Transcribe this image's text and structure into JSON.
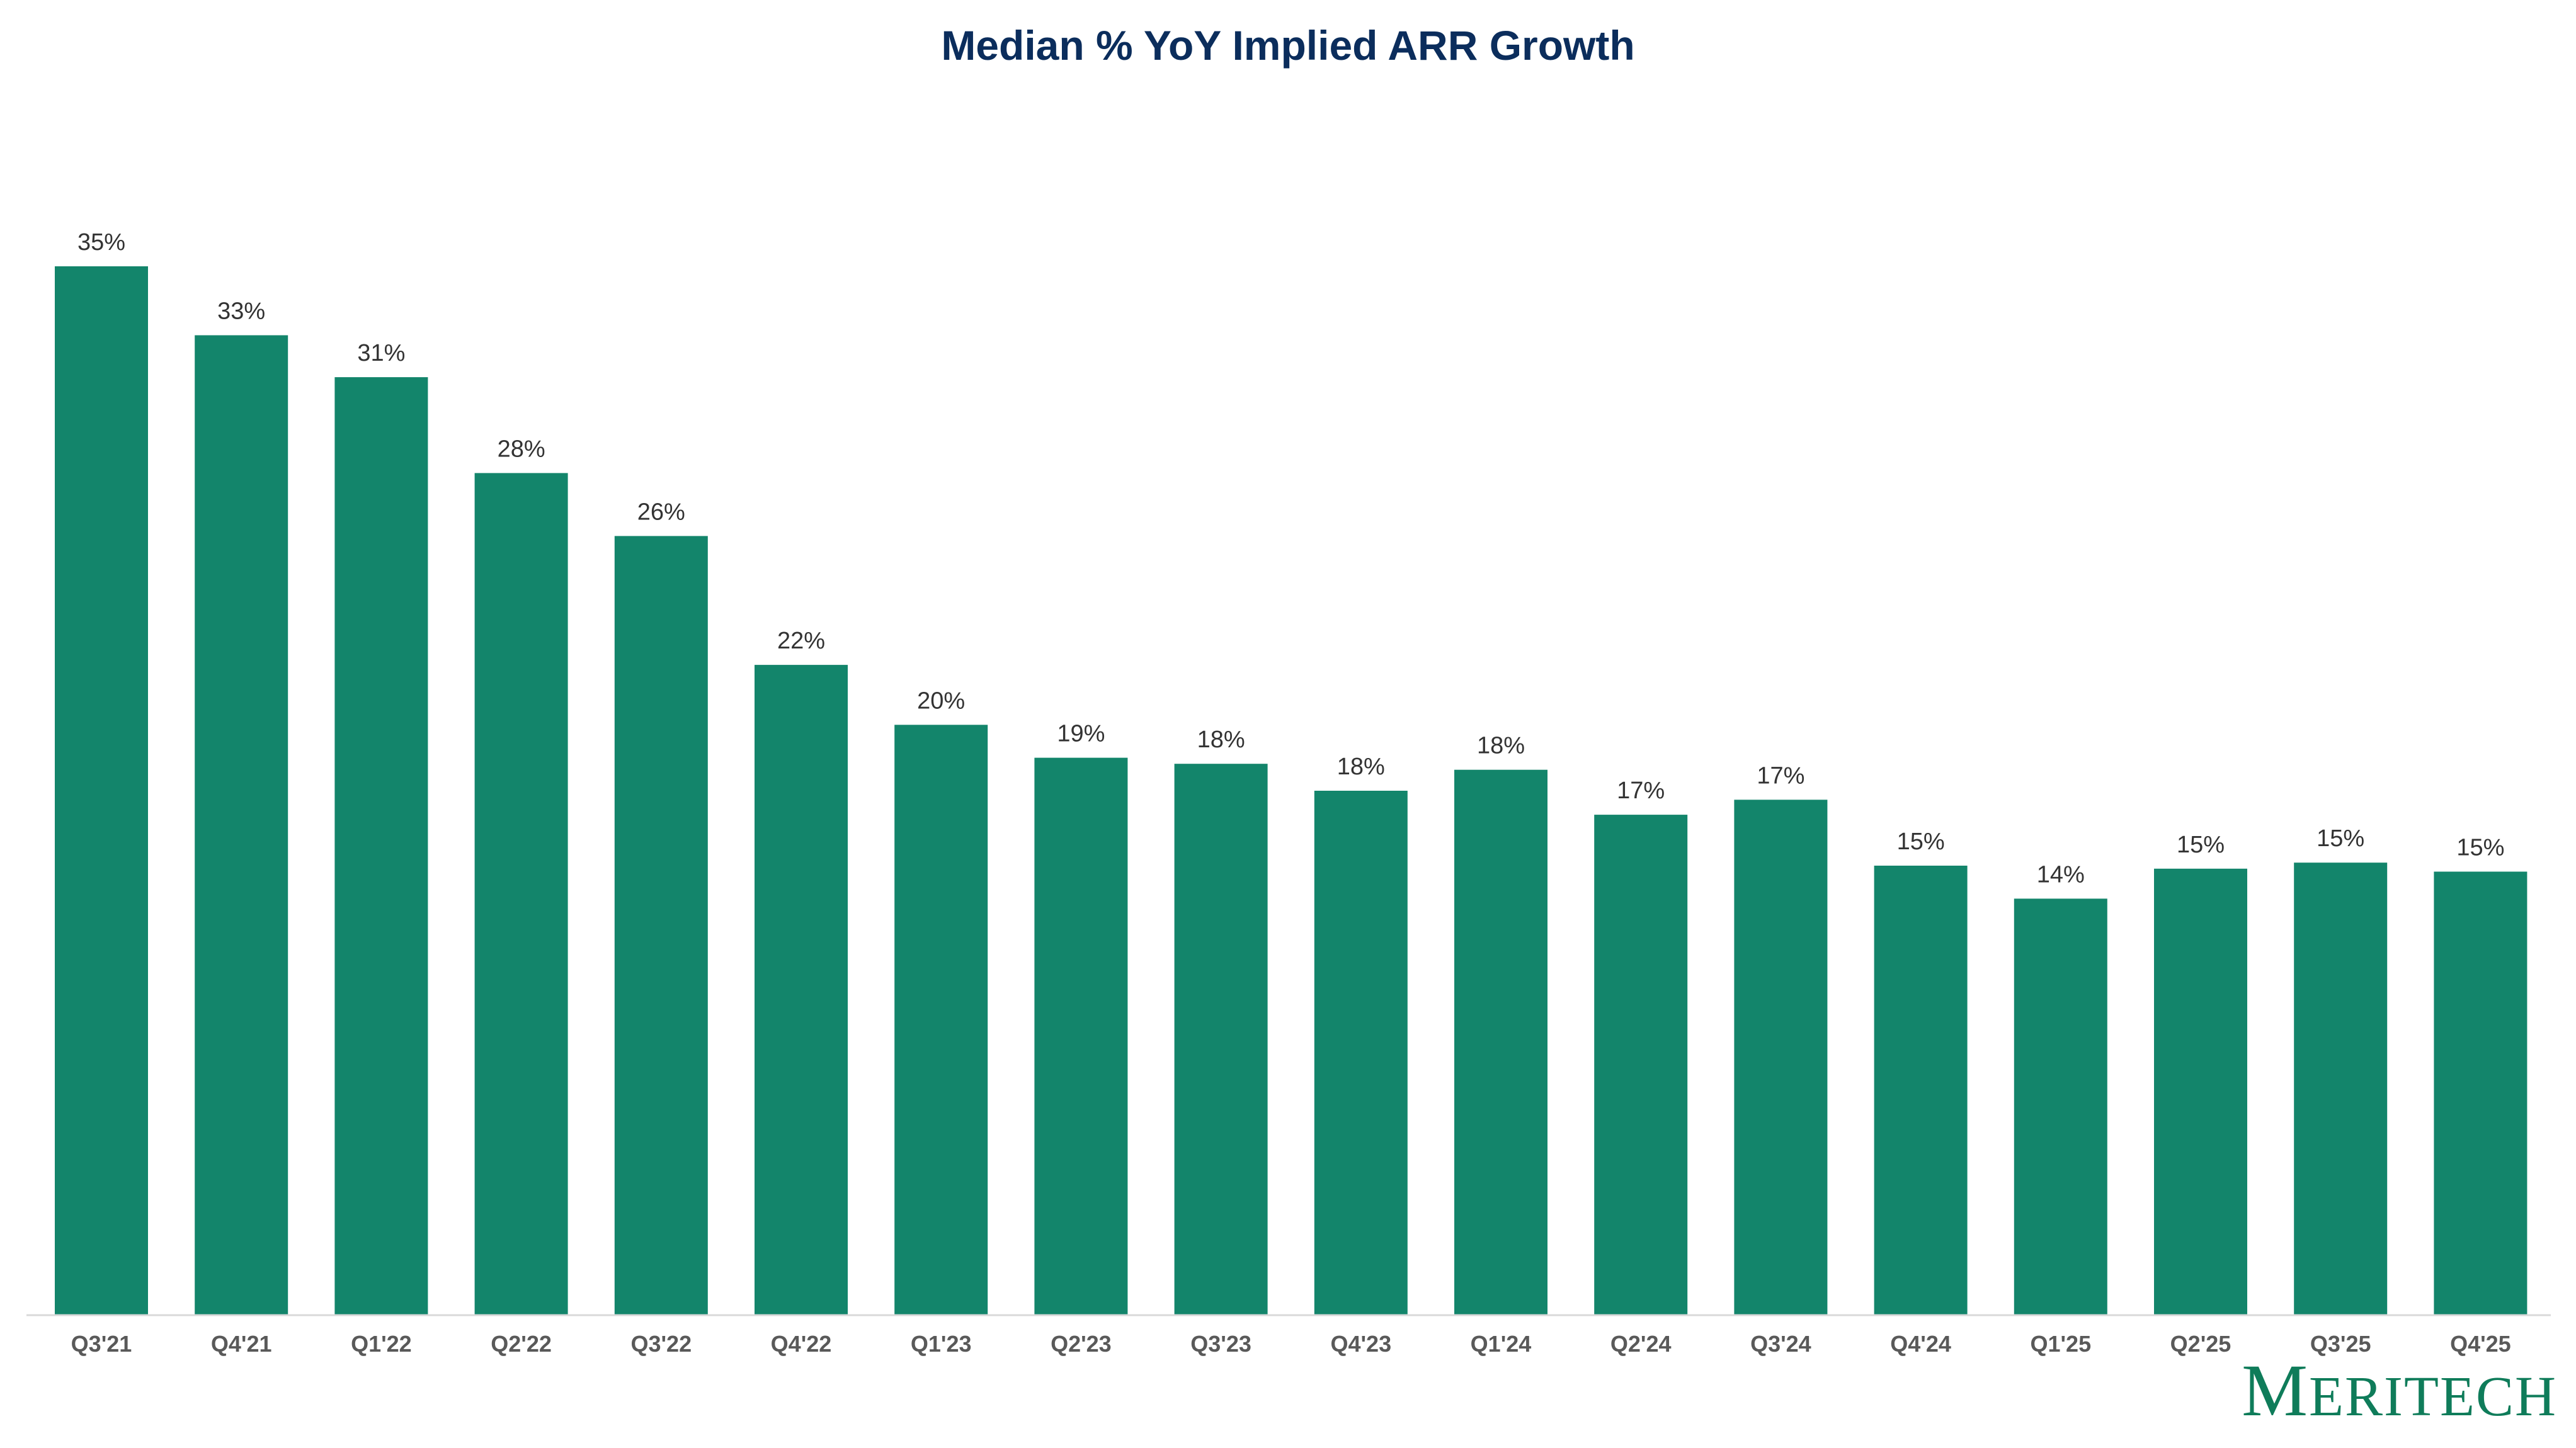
{
  "chart_data": {
    "type": "bar",
    "title": "Median % YoY Implied ARR Growth",
    "xlabel": "",
    "ylabel": "",
    "categories": [
      "Q3'21",
      "Q4'21",
      "Q1'22",
      "Q2'22",
      "Q3'22",
      "Q4'22",
      "Q1'23",
      "Q2'23",
      "Q3'23",
      "Q4'23",
      "Q1'24",
      "Q2'24",
      "Q3'24",
      "Q4'24",
      "Q1'25",
      "Q2'25",
      "Q3'25",
      "Q4'25"
    ],
    "values": [
      35.0,
      32.7,
      31.3,
      28.1,
      26.0,
      21.7,
      19.7,
      18.6,
      18.4,
      17.5,
      18.2,
      16.7,
      17.2,
      15.0,
      13.9,
      14.9,
      15.1,
      14.8
    ],
    "data_labels": [
      "35%",
      "33%",
      "31%",
      "28%",
      "26%",
      "22%",
      "20%",
      "19%",
      "18%",
      "18%",
      "18%",
      "17%",
      "17%",
      "15%",
      "14%",
      "15%",
      "15%",
      "15%"
    ],
    "ylim": [
      0,
      40
    ],
    "grid": false,
    "bar_color": "#13856b"
  },
  "brand": {
    "logo_text": "Meritech"
  }
}
